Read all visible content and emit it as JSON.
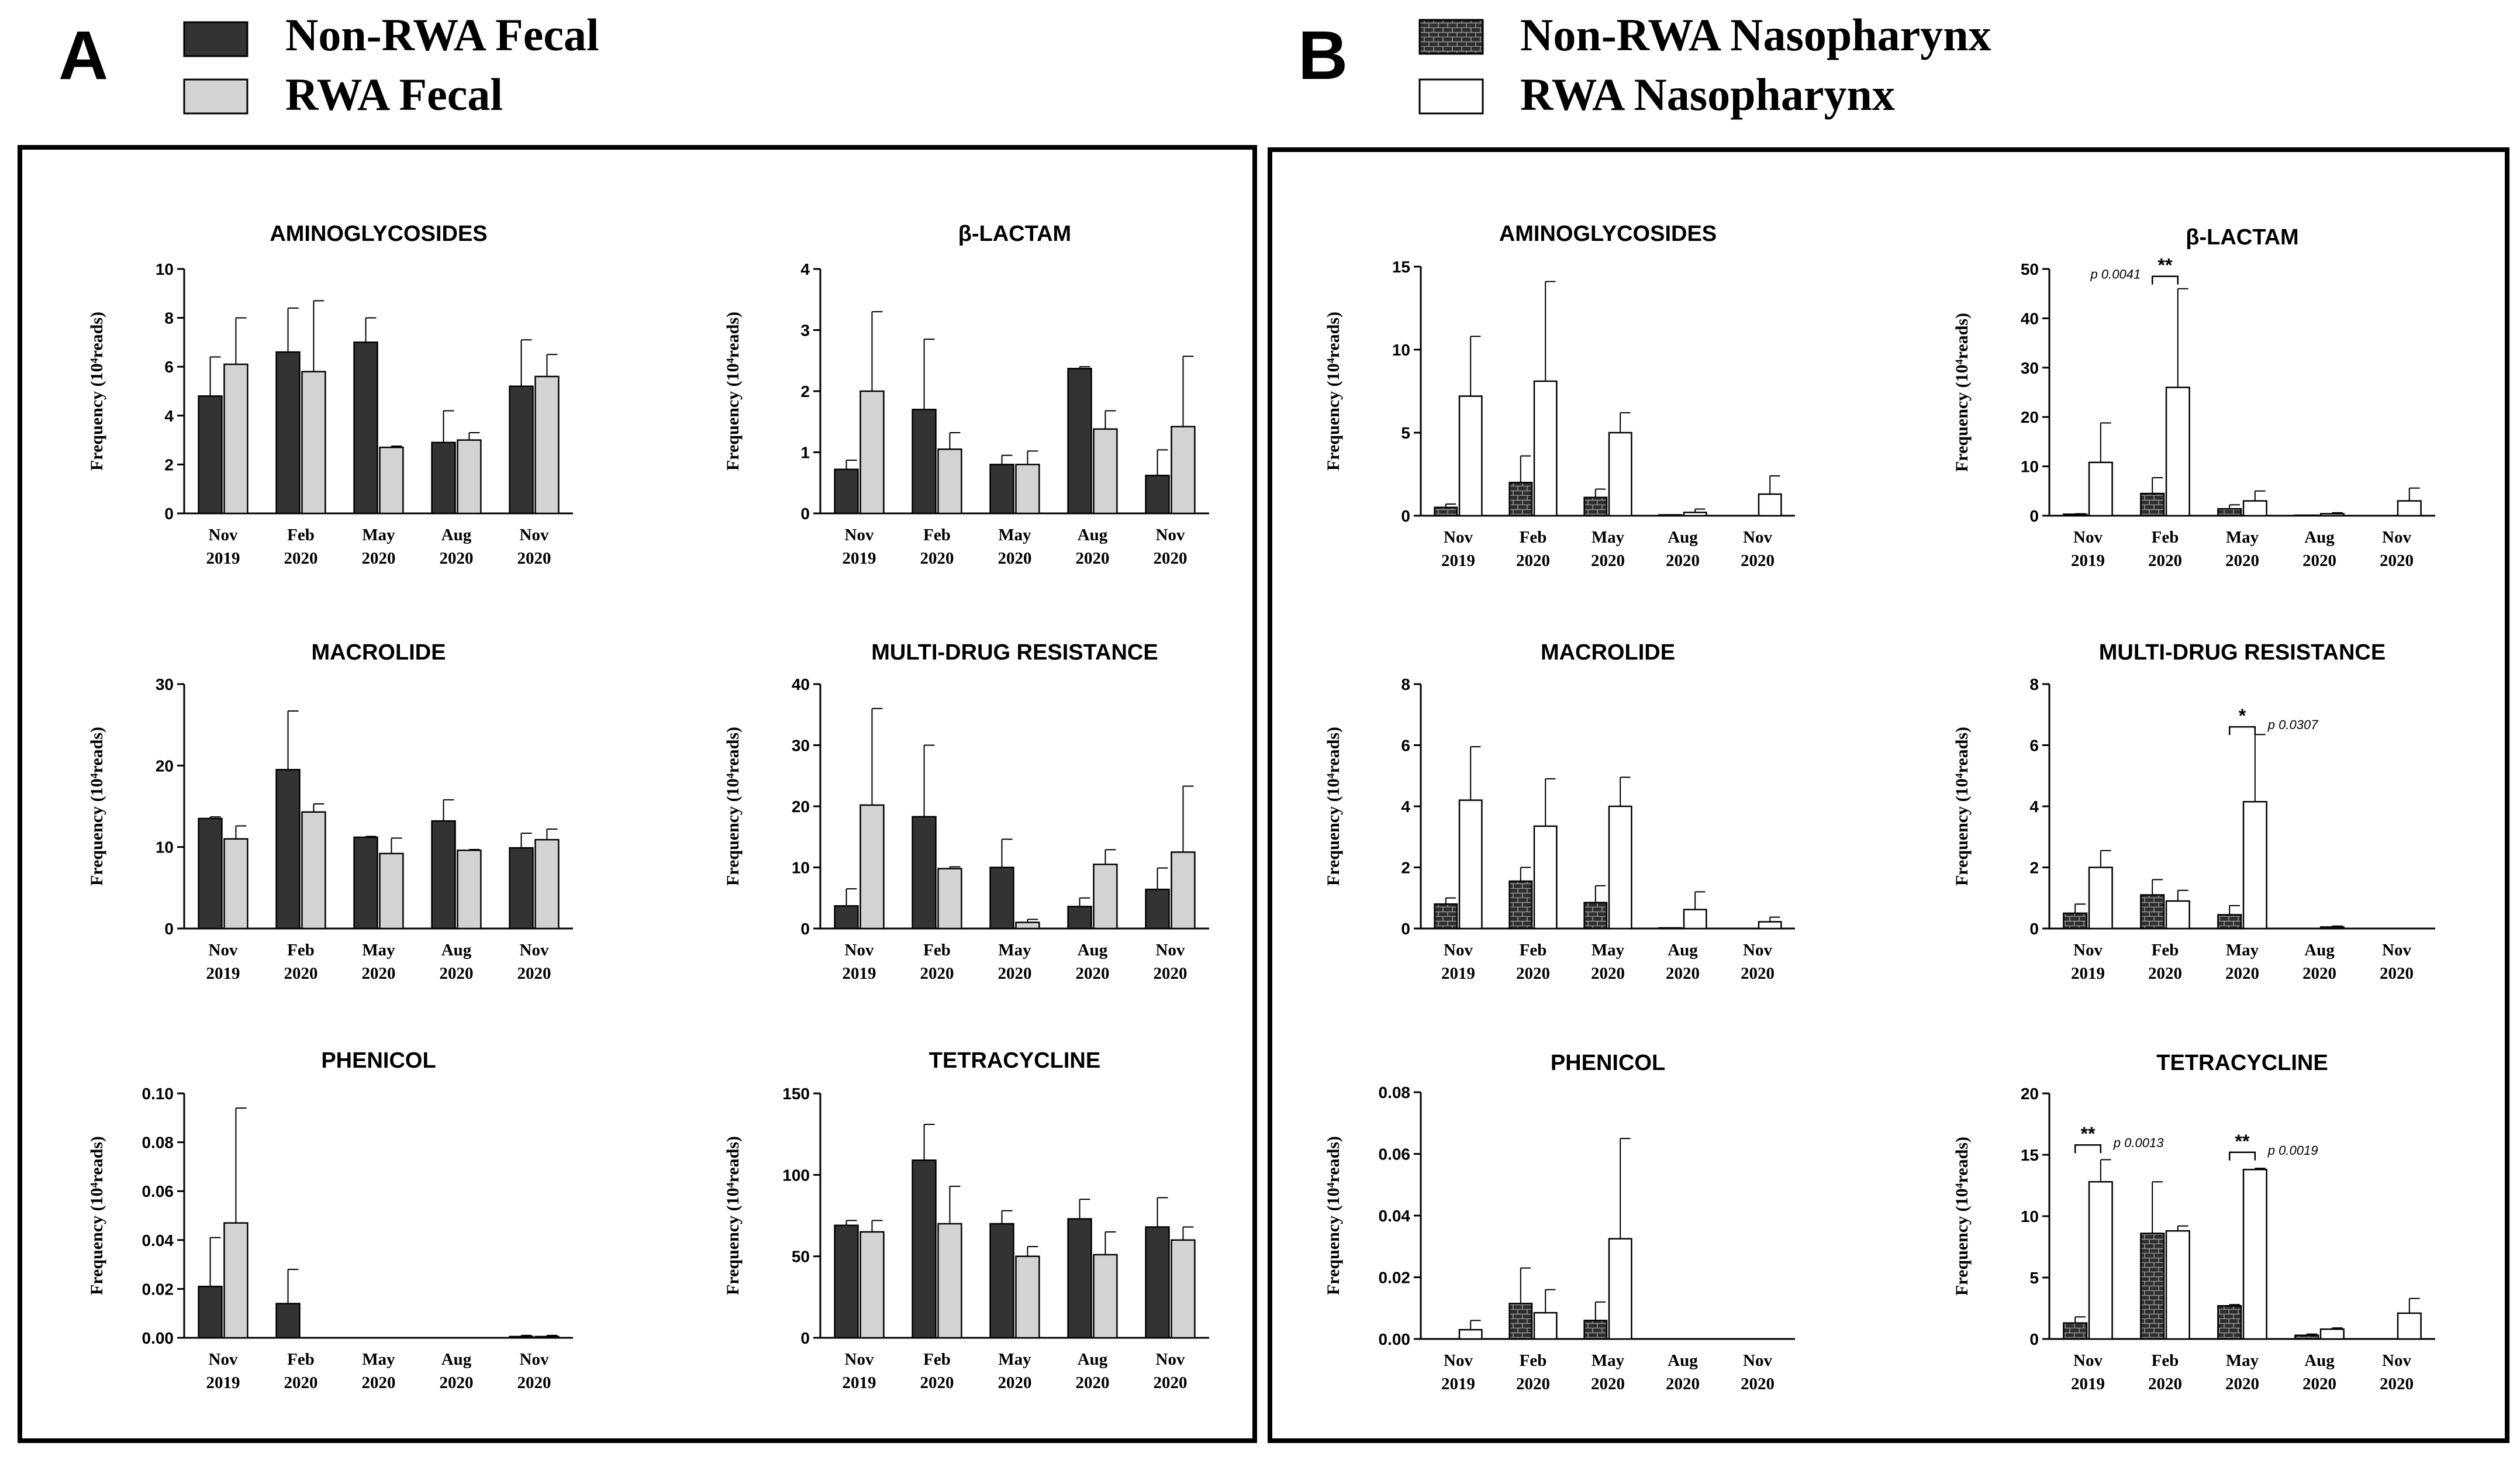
{
  "panels": [
    {
      "letter": "A",
      "legend": [
        {
          "label": "Non-RWA Fecal",
          "style": "dark"
        },
        {
          "label": "RWA Fecal",
          "style": "gray"
        }
      ]
    },
    {
      "letter": "B",
      "legend": [
        {
          "label": "Non-RWA Nasopharynx",
          "style": "brick"
        },
        {
          "label": "RWA Nasopharynx",
          "style": "white"
        }
      ]
    }
  ],
  "colors": {
    "dark": "#333333",
    "gray": "#d3d3d3",
    "brick": "#2e2e2e",
    "white": "#ffffff",
    "stroke": "#000000"
  },
  "chart_data": [
    {
      "type": "bar",
      "panel": "A",
      "title": "AMINOGLYCOSIDES",
      "ylabel": "Frequency (10⁴reads)",
      "ylim": [
        0,
        10
      ],
      "yticks": [
        0,
        2,
        4,
        6,
        8,
        10
      ],
      "ytick_labels": [
        "0",
        "2",
        "4",
        "6",
        "8",
        "10"
      ],
      "categories": [
        "Nov 2019",
        "Feb 2020",
        "May 2020",
        "Aug 2020",
        "Nov 2020"
      ],
      "series": [
        {
          "name": "Non-RWA Fecal",
          "style": "dark",
          "values": [
            4.8,
            6.6,
            7.0,
            2.9,
            5.2
          ],
          "errors": [
            1.6,
            1.8,
            1.0,
            1.3,
            1.9
          ]
        },
        {
          "name": "RWA Fecal",
          "style": "gray",
          "values": [
            6.1,
            5.8,
            2.7,
            3.0,
            5.6
          ],
          "errors": [
            1.9,
            2.9,
            0.05,
            0.3,
            0.9
          ]
        }
      ],
      "annotations": []
    },
    {
      "type": "bar",
      "panel": "A",
      "title": "β-LACTAM",
      "ylabel": "Frequency (10⁴reads)",
      "ylim": [
        0,
        4
      ],
      "yticks": [
        0,
        1,
        2,
        3,
        4
      ],
      "ytick_labels": [
        "0",
        "1",
        "2",
        "3",
        "4"
      ],
      "categories": [
        "Nov 2019",
        "Feb 2020",
        "May 2020",
        "Aug 2020",
        "Nov 2020"
      ],
      "series": [
        {
          "name": "Non-RWA Fecal",
          "style": "dark",
          "values": [
            0.72,
            1.7,
            0.8,
            2.37,
            0.62
          ],
          "errors": [
            0.15,
            1.15,
            0.15,
            0.03,
            0.42
          ]
        },
        {
          "name": "RWA Fecal",
          "style": "gray",
          "values": [
            2.0,
            1.05,
            0.8,
            1.38,
            1.42
          ],
          "errors": [
            1.3,
            0.27,
            0.22,
            0.3,
            1.15
          ]
        }
      ],
      "annotations": []
    },
    {
      "type": "bar",
      "panel": "A",
      "title": "MACROLIDE",
      "ylabel": "Frequency (10⁴reads)",
      "ylim": [
        0,
        30
      ],
      "yticks": [
        0,
        10,
        20,
        30
      ],
      "ytick_labels": [
        "0",
        "10",
        "20",
        "30"
      ],
      "categories": [
        "Nov 2019",
        "Feb 2020",
        "May 2020",
        "Aug 2020",
        "Nov 2020"
      ],
      "series": [
        {
          "name": "Non-RWA Fecal",
          "style": "dark",
          "values": [
            13.5,
            19.5,
            11.2,
            13.2,
            9.9
          ],
          "errors": [
            0.2,
            7.2,
            0.1,
            2.6,
            1.8
          ]
        },
        {
          "name": "RWA Fecal",
          "style": "gray",
          "values": [
            11.0,
            14.3,
            9.2,
            9.6,
            10.9
          ],
          "errors": [
            1.6,
            1.0,
            1.9,
            0.1,
            1.3
          ]
        }
      ],
      "annotations": []
    },
    {
      "type": "bar",
      "panel": "A",
      "title": "MULTI-DRUG RESISTANCE",
      "ylabel": "Frequency (10⁴reads)",
      "ylim": [
        0,
        40
      ],
      "yticks": [
        0,
        10,
        20,
        30,
        40
      ],
      "ytick_labels": [
        "0",
        "10",
        "20",
        "30",
        "40"
      ],
      "categories": [
        "Nov 2019",
        "Feb 2020",
        "May 2020",
        "Aug 2020",
        "Nov 2020"
      ],
      "series": [
        {
          "name": "Non-RWA Fecal",
          "style": "dark",
          "values": [
            3.7,
            18.3,
            10.0,
            3.6,
            6.4
          ],
          "errors": [
            2.8,
            11.7,
            4.6,
            1.4,
            3.5
          ]
        },
        {
          "name": "RWA Fecal",
          "style": "gray",
          "values": [
            20.2,
            9.8,
            1.0,
            10.5,
            12.5
          ],
          "errors": [
            15.8,
            0.3,
            0.5,
            2.4,
            10.8
          ]
        }
      ],
      "annotations": []
    },
    {
      "type": "bar",
      "panel": "A",
      "title": "PHENICOL",
      "ylabel": "Frequency (10⁴reads)",
      "ylim": [
        0,
        0.1
      ],
      "yticks": [
        0,
        0.02,
        0.04,
        0.06,
        0.08,
        0.1
      ],
      "ytick_labels": [
        "0.00",
        "0.02",
        "0.04",
        "0.06",
        "0.08",
        "0.10"
      ],
      "categories": [
        "Nov 2019",
        "Feb 2020",
        "May 2020",
        "Aug 2020",
        "Nov 2020"
      ],
      "series": [
        {
          "name": "Non-RWA Fecal",
          "style": "dark",
          "values": [
            0.021,
            0.014,
            0,
            0,
            0.0005
          ],
          "errors": [
            0.02,
            0.014,
            0,
            0,
            0.0005
          ]
        },
        {
          "name": "RWA Fecal",
          "style": "gray",
          "values": [
            0.047,
            0,
            0,
            0,
            0.0005
          ],
          "errors": [
            0.047,
            0,
            0,
            0,
            0.0005
          ]
        }
      ],
      "annotations": []
    },
    {
      "type": "bar",
      "panel": "A",
      "title": "TETRACYCLINE",
      "ylabel": "Frequency (10⁴reads)",
      "ylim": [
        0,
        150
      ],
      "yticks": [
        0,
        50,
        100,
        150
      ],
      "ytick_labels": [
        "0",
        "50",
        "100",
        "150"
      ],
      "categories": [
        "Nov 2019",
        "Feb 2020",
        "May 2020",
        "Aug 2020",
        "Nov 2020"
      ],
      "series": [
        {
          "name": "Non-RWA Fecal",
          "style": "dark",
          "values": [
            69,
            109,
            70,
            73,
            68
          ],
          "errors": [
            3,
            22,
            8,
            12,
            18
          ]
        },
        {
          "name": "RWA Fecal",
          "style": "gray",
          "values": [
            65,
            70,
            50,
            51,
            60
          ],
          "errors": [
            7,
            23,
            6,
            14,
            8
          ]
        }
      ],
      "annotations": []
    },
    {
      "type": "bar",
      "panel": "B",
      "title": "AMINOGLYCOSIDES",
      "ylabel": "Frequency (10⁴reads)",
      "ylim": [
        0,
        15
      ],
      "yticks": [
        0,
        5,
        10,
        15
      ],
      "ytick_labels": [
        "0",
        "5",
        "10",
        "15"
      ],
      "categories": [
        "Nov 2019",
        "Feb 2020",
        "May 2020",
        "Aug 2020",
        "Nov 2020"
      ],
      "series": [
        {
          "name": "Non-RWA Nasopharynx",
          "style": "brick",
          "values": [
            0.5,
            2.0,
            1.1,
            0.05,
            0
          ],
          "errors": [
            0.2,
            1.6,
            0.5,
            0,
            0
          ]
        },
        {
          "name": "RWA Nasopharynx",
          "style": "white",
          "values": [
            7.2,
            8.1,
            5.0,
            0.2,
            1.3
          ],
          "errors": [
            3.6,
            6.0,
            1.2,
            0.2,
            1.1
          ]
        }
      ],
      "annotations": []
    },
    {
      "type": "bar",
      "panel": "B",
      "title": "β-LACTAM",
      "ylabel": "Frequency (10⁴reads)",
      "ylim": [
        0,
        50
      ],
      "yticks": [
        0,
        10,
        20,
        30,
        40,
        50
      ],
      "ytick_labels": [
        "0",
        "10",
        "20",
        "30",
        "40",
        "50"
      ],
      "categories": [
        "Nov 2019",
        "Feb 2020",
        "May 2020",
        "Aug 2020",
        "Nov 2020"
      ],
      "series": [
        {
          "name": "Non-RWA Nasopharynx",
          "style": "brick",
          "values": [
            0.3,
            4.5,
            1.4,
            0.1,
            0
          ],
          "errors": [
            0.1,
            3.2,
            0.8,
            0,
            0
          ]
        },
        {
          "name": "RWA Nasopharynx",
          "style": "white",
          "values": [
            10.8,
            26.0,
            3.0,
            0.4,
            3.0
          ],
          "errors": [
            8.0,
            20.0,
            2.0,
            0.2,
            2.6
          ]
        }
      ],
      "annotations": [
        {
          "group": 1,
          "stars": "**",
          "level": 48.5,
          "p_text": "p 0.0041",
          "p_side": "left"
        }
      ]
    },
    {
      "type": "bar",
      "panel": "B",
      "title": "MACROLIDE",
      "ylabel": "Frequency (10⁴reads)",
      "ylim": [
        0,
        8
      ],
      "yticks": [
        0,
        2,
        4,
        6,
        8
      ],
      "ytick_labels": [
        "0",
        "2",
        "4",
        "6",
        "8"
      ],
      "categories": [
        "Nov 2019",
        "Feb 2020",
        "May 2020",
        "Aug 2020",
        "Nov 2020"
      ],
      "series": [
        {
          "name": "Non-RWA Nasopharynx",
          "style": "brick",
          "values": [
            0.8,
            1.55,
            0.85,
            0.02,
            0
          ],
          "errors": [
            0.2,
            0.45,
            0.55,
            0,
            0
          ]
        },
        {
          "name": "RWA Nasopharynx",
          "style": "white",
          "values": [
            4.2,
            3.35,
            4.0,
            0.62,
            0.22
          ],
          "errors": [
            1.75,
            1.55,
            0.95,
            0.58,
            0.15
          ]
        }
      ],
      "annotations": []
    },
    {
      "type": "bar",
      "panel": "B",
      "title": "MULTI-DRUG RESISTANCE",
      "ylabel": "Frequency (10⁴reads)",
      "ylim": [
        0,
        8
      ],
      "yticks": [
        0,
        2,
        4,
        6,
        8
      ],
      "ytick_labels": [
        "0",
        "2",
        "4",
        "6",
        "8"
      ],
      "categories": [
        "Nov 2019",
        "Feb 2020",
        "May 2020",
        "Aug 2020",
        "Nov 2020"
      ],
      "series": [
        {
          "name": "Non-RWA Nasopharynx",
          "style": "brick",
          "values": [
            0.5,
            1.1,
            0.45,
            0,
            0
          ],
          "errors": [
            0.3,
            0.5,
            0.3,
            0,
            0
          ]
        },
        {
          "name": "RWA Nasopharynx",
          "style": "white",
          "values": [
            2.0,
            0.9,
            4.15,
            0.05,
            0
          ],
          "errors": [
            0.55,
            0.35,
            2.2,
            0.03,
            0
          ]
        }
      ],
      "annotations": [
        {
          "group": 2,
          "stars": "*",
          "level": 6.6,
          "p_text": "p 0.0307",
          "p_side": "right"
        }
      ]
    },
    {
      "type": "bar",
      "panel": "B",
      "title": "PHENICOL",
      "ylabel": "Frequency (10⁴reads)",
      "ylim": [
        0,
        0.08
      ],
      "yticks": [
        0,
        0.02,
        0.04,
        0.06,
        0.08
      ],
      "ytick_labels": [
        "0.00",
        "0.02",
        "0.04",
        "0.06",
        "0.08"
      ],
      "categories": [
        "Nov 2019",
        "Feb 2020",
        "May 2020",
        "Aug 2020",
        "Nov 2020"
      ],
      "series": [
        {
          "name": "Non-RWA Nasopharynx",
          "style": "brick",
          "values": [
            0,
            0.0115,
            0.006,
            0,
            0
          ],
          "errors": [
            0,
            0.0115,
            0.006,
            0,
            0
          ]
        },
        {
          "name": "RWA Nasopharynx",
          "style": "white",
          "values": [
            0.003,
            0.0085,
            0.0325,
            0,
            0
          ],
          "errors": [
            0.003,
            0.0075,
            0.0325,
            0,
            0
          ]
        }
      ],
      "annotations": []
    },
    {
      "type": "bar",
      "panel": "B",
      "title": "TETRACYCLINE",
      "ylabel": "Frequency (10⁴reads)",
      "ylim": [
        0,
        20
      ],
      "yticks": [
        0,
        5,
        10,
        15,
        20
      ],
      "ytick_labels": [
        "0",
        "5",
        "10",
        "15",
        "20"
      ],
      "categories": [
        "Nov 2019",
        "Feb 2020",
        "May 2020",
        "Aug 2020",
        "Nov 2020"
      ],
      "series": [
        {
          "name": "Non-RWA Nasopharynx",
          "style": "brick",
          "values": [
            1.3,
            8.6,
            2.7,
            0.3,
            0
          ],
          "errors": [
            0.5,
            4.2,
            0.1,
            0.1,
            0
          ]
        },
        {
          "name": "RWA Nasopharynx",
          "style": "white",
          "values": [
            12.8,
            8.8,
            13.8,
            0.8,
            2.1
          ],
          "errors": [
            1.8,
            0.4,
            0.1,
            0.1,
            1.2
          ]
        }
      ],
      "annotations": [
        {
          "group": 0,
          "stars": "**",
          "level": 15.8,
          "p_text": "p 0.0013",
          "p_side": "right"
        },
        {
          "group": 2,
          "stars": "**",
          "level": 15.2,
          "p_text": "p 0.0019",
          "p_side": "right"
        }
      ]
    }
  ]
}
